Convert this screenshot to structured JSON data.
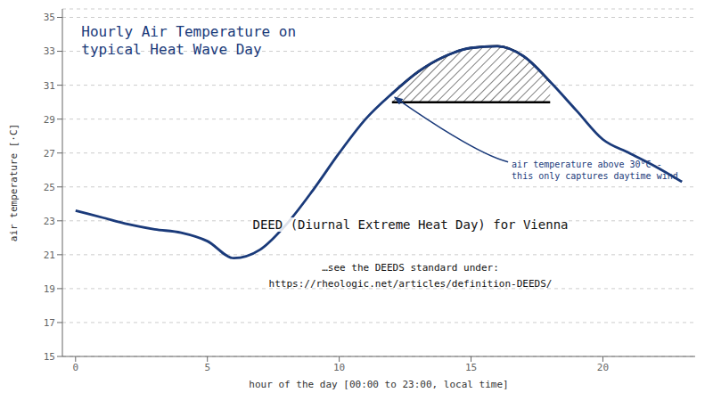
{
  "chart_data": {
    "type": "line",
    "title": "Hourly Air Temperature on\ntypical Heat Wave Day",
    "x_label": "hour of the day [00:00 to 23:00, local time]",
    "y_label": "air temperature [·C]",
    "x": [
      0,
      1,
      2,
      3,
      4,
      5,
      6,
      7,
      8,
      9,
      10,
      11,
      12,
      13,
      14,
      15,
      16,
      17,
      18,
      19,
      20,
      21,
      22,
      23
    ],
    "values": [
      23.6,
      23.2,
      22.8,
      22.5,
      22.3,
      21.8,
      20.8,
      21.3,
      22.8,
      24.8,
      27.0,
      29.0,
      30.5,
      31.8,
      32.7,
      33.2,
      33.3,
      32.7,
      31.2,
      29.5,
      27.8,
      27.0,
      26.2,
      25.3
    ],
    "threshold": 30.0,
    "color": "#1a3a7a",
    "xlim": [
      -0.5,
      23.5
    ],
    "xticks": [
      0,
      5,
      10,
      15,
      20
    ],
    "ylim": [
      15,
      35.5
    ],
    "yticks": [
      15,
      17,
      19,
      21,
      23,
      25,
      27,
      29,
      31,
      33,
      35
    ],
    "grid": true,
    "annotations": [
      "DEED (Diurnal Extreme Heat Day) for Vienna",
      "…see the DEEDS standard under:\nhttps://rheologic.net/articles/definition-DEEDS/",
      "air temperature above 30°C -\nthis only captures daytime wind"
    ]
  }
}
